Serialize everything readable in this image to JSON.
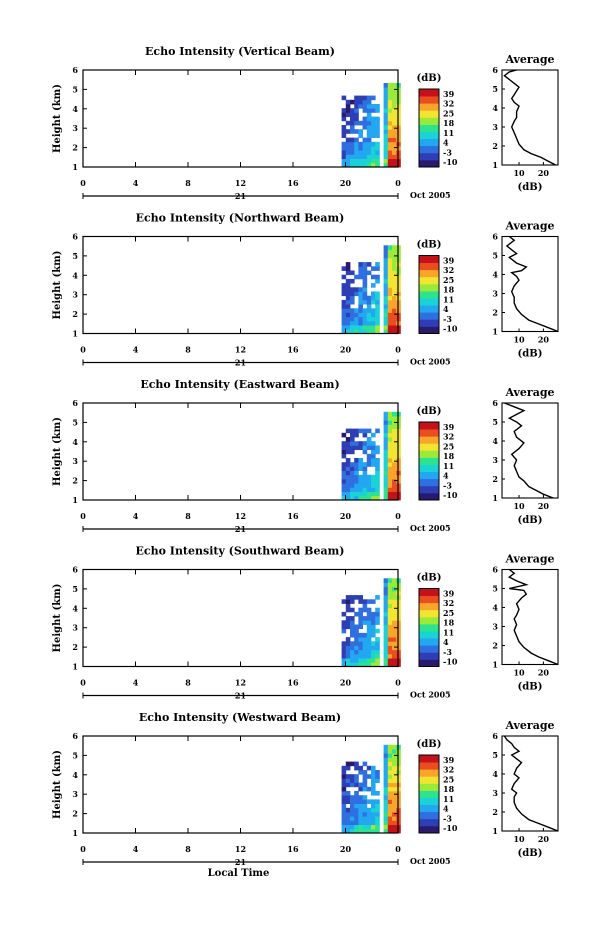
{
  "figure": {
    "date_label": "Oct 2005",
    "day_label": "21",
    "bottom_xlabel": "Local Time"
  },
  "colorbar": {
    "unit": "(dB)",
    "ticks": [
      "-10",
      "-3",
      "4",
      "11",
      "18",
      "25",
      "32",
      "39"
    ],
    "colors": [
      "#2a1a6e",
      "#2e3fb5",
      "#2f6fe0",
      "#22a7f0",
      "#19d3d6",
      "#2ee38f",
      "#9bea3a",
      "#f2e531",
      "#f8a52a",
      "#ea4d1f",
      "#c4121a"
    ]
  },
  "chart_data": [
    {
      "type": "heatmap",
      "title": "Echo Intensity (Vertical Beam)",
      "xlabel": "",
      "ylabel": "Height (km)",
      "xlim": [
        0,
        24
      ],
      "ylim": [
        1,
        6
      ],
      "xticks": [
        "0",
        "4",
        "8",
        "12",
        "16",
        "20",
        "0"
      ],
      "yticks": [
        "1",
        "2",
        "3",
        "4",
        "5",
        "6"
      ],
      "data_extent": {
        "x_start": 19.7,
        "x_end": 24,
        "y_top": 5.5
      },
      "average_profile": {
        "title": "Average",
        "xlabel": "(dB)",
        "ylabel": "",
        "xticks": [
          "10",
          "20"
        ],
        "yticks": [
          "1",
          "2",
          "3",
          "4",
          "5",
          "6"
        ],
        "xlim": [
          3,
          26
        ],
        "ylim": [
          1,
          6
        ],
        "x": [
          25,
          22,
          19,
          15,
          12,
          10,
          9,
          8,
          7,
          8,
          9,
          9,
          10,
          8,
          7,
          8,
          9,
          10,
          8,
          6,
          4,
          6,
          9
        ],
        "y": [
          1.0,
          1.2,
          1.4,
          1.6,
          1.8,
          2.1,
          2.4,
          2.7,
          3.0,
          3.3,
          3.5,
          3.8,
          4.1,
          4.3,
          4.5,
          4.7,
          4.9,
          5.1,
          5.3,
          5.5,
          5.7,
          5.9,
          6.0
        ]
      }
    },
    {
      "type": "heatmap",
      "title": "Echo Intensity (Northward Beam)",
      "xlabel": "",
      "ylabel": "Height (km)",
      "xlim": [
        0,
        24
      ],
      "ylim": [
        1,
        6
      ],
      "xticks": [
        "0",
        "4",
        "8",
        "12",
        "16",
        "20",
        "0"
      ],
      "yticks": [
        "1",
        "2",
        "3",
        "4",
        "5",
        "6"
      ],
      "data_extent": {
        "x_start": 19.7,
        "x_end": 24,
        "y_top": 5.6
      },
      "average_profile": {
        "title": "Average",
        "xlabel": "(dB)",
        "ylabel": "",
        "xticks": [
          "10",
          "20"
        ],
        "yticks": [
          "1",
          "2",
          "3",
          "4",
          "5",
          "6"
        ],
        "xlim": [
          3,
          26
        ],
        "ylim": [
          1,
          6
        ],
        "x": [
          26,
          22,
          18,
          14,
          11,
          9,
          8,
          8,
          7,
          8,
          10,
          9,
          7,
          11,
          13,
          9,
          6,
          9,
          7,
          5,
          8,
          6
        ],
        "y": [
          1.0,
          1.2,
          1.4,
          1.6,
          1.9,
          2.2,
          2.5,
          2.8,
          3.1,
          3.4,
          3.7,
          3.9,
          4.1,
          4.2,
          4.4,
          4.6,
          4.9,
          5.1,
          5.3,
          5.5,
          5.8,
          6.0
        ]
      }
    },
    {
      "type": "heatmap",
      "title": "Echo Intensity (Eastward Beam)",
      "xlabel": "",
      "ylabel": "Height (km)",
      "xlim": [
        0,
        24
      ],
      "ylim": [
        1,
        6
      ],
      "xticks": [
        "0",
        "4",
        "8",
        "12",
        "16",
        "20",
        "0"
      ],
      "yticks": [
        "1",
        "2",
        "3",
        "4",
        "5",
        "6"
      ],
      "data_extent": {
        "x_start": 19.7,
        "x_end": 24,
        "y_top": 5.6
      },
      "average_profile": {
        "title": "Average",
        "xlabel": "(dB)",
        "ylabel": "",
        "xticks": [
          "10",
          "20"
        ],
        "yticks": [
          "1",
          "2",
          "3",
          "4",
          "5",
          "6"
        ],
        "xlim": [
          3,
          26
        ],
        "ylim": [
          1,
          6
        ],
        "x": [
          24,
          20,
          17,
          14,
          12,
          10,
          9,
          8,
          9,
          7,
          10,
          12,
          9,
          8,
          11,
          9,
          6,
          9,
          12,
          8,
          6,
          4
        ],
        "y": [
          1.0,
          1.2,
          1.4,
          1.6,
          1.9,
          2.1,
          2.4,
          2.7,
          3.0,
          3.3,
          3.6,
          3.9,
          4.2,
          4.5,
          4.8,
          5.0,
          5.2,
          5.4,
          5.6,
          5.8,
          5.9,
          6.0
        ]
      }
    },
    {
      "type": "heatmap",
      "title": "Echo Intensity (Southward Beam)",
      "xlabel": "",
      "ylabel": "Height (km)",
      "xlim": [
        0,
        24
      ],
      "ylim": [
        1,
        6
      ],
      "xticks": [
        "0",
        "4",
        "8",
        "12",
        "16",
        "20",
        "0"
      ],
      "yticks": [
        "1",
        "2",
        "3",
        "4",
        "5",
        "6"
      ],
      "data_extent": {
        "x_start": 19.7,
        "x_end": 24,
        "y_top": 5.6
      },
      "average_profile": {
        "title": "Average",
        "xlabel": "(dB)",
        "ylabel": "",
        "xticks": [
          "10",
          "20"
        ],
        "yticks": [
          "1",
          "2",
          "3",
          "4",
          "5",
          "6"
        ],
        "xlim": [
          3,
          26
        ],
        "ylim": [
          1,
          6
        ],
        "x": [
          26,
          22,
          18,
          15,
          12,
          10,
          9,
          8,
          9,
          8,
          9,
          10,
          9,
          11,
          13,
          12,
          6,
          13,
          9,
          6,
          8,
          6
        ],
        "y": [
          1.0,
          1.2,
          1.4,
          1.6,
          1.9,
          2.2,
          2.5,
          2.8,
          3.1,
          3.4,
          3.6,
          3.9,
          4.2,
          4.5,
          4.7,
          4.9,
          5.0,
          5.2,
          5.4,
          5.6,
          5.8,
          6.0
        ]
      }
    },
    {
      "type": "heatmap",
      "title": "Echo Intensity (Westward Beam)",
      "xlabel": "Local Time",
      "ylabel": "Height (km)",
      "xlim": [
        0,
        24
      ],
      "ylim": [
        1,
        6
      ],
      "xticks": [
        "0",
        "4",
        "8",
        "12",
        "16",
        "20",
        "0"
      ],
      "yticks": [
        "1",
        "2",
        "3",
        "4",
        "5",
        "6"
      ],
      "data_extent": {
        "x_start": 19.7,
        "x_end": 24,
        "y_top": 5.6
      },
      "average_profile": {
        "title": "Average",
        "xlabel": "(dB)",
        "ylabel": "",
        "xticks": [
          "10",
          "20"
        ],
        "yticks": [
          "1",
          "2",
          "3",
          "4",
          "5",
          "6"
        ],
        "xlim": [
          3,
          26
        ],
        "ylim": [
          1,
          6
        ],
        "x": [
          26,
          22,
          18,
          14,
          11,
          9,
          8,
          8,
          9,
          7,
          8,
          10,
          8,
          9,
          11,
          9,
          7,
          10,
          8,
          7,
          5,
          4
        ],
        "y": [
          1.0,
          1.2,
          1.4,
          1.6,
          1.9,
          2.2,
          2.5,
          2.8,
          3.0,
          3.2,
          3.5,
          3.8,
          4.0,
          4.3,
          4.6,
          4.8,
          5.0,
          5.2,
          5.4,
          5.6,
          5.8,
          6.0
        ]
      }
    }
  ]
}
